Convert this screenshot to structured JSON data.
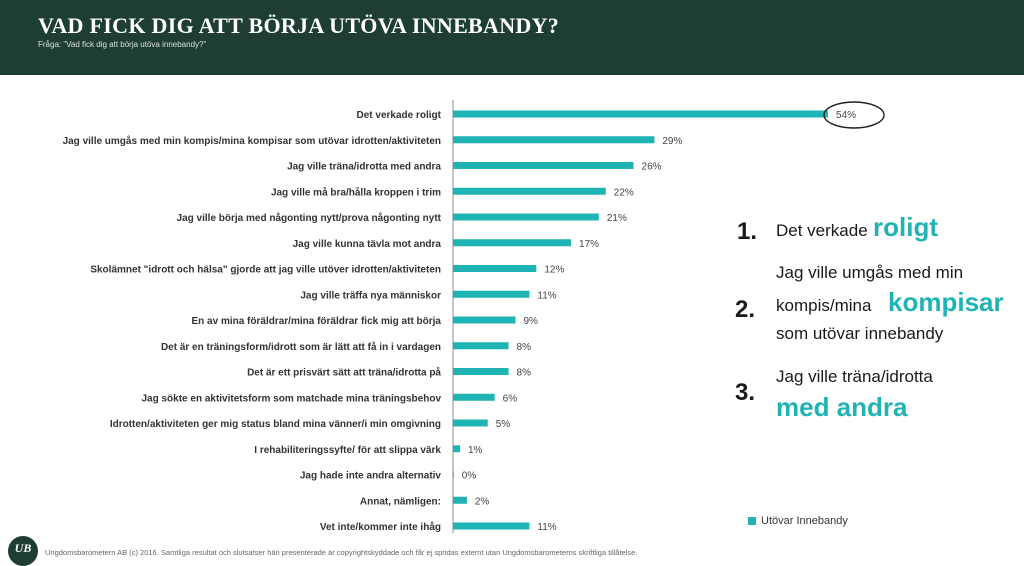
{
  "header": {
    "title": "VAD FICK DIG ATT BÖRJA UTÖVA INNEBANDY?",
    "subtitle": "Fråga: \"Vad fick dig att börja utöva innebandy?\""
  },
  "chart_data": {
    "type": "bar",
    "orientation": "horizontal",
    "categories": [
      "Det verkade roligt",
      "Jag ville umgås med min kompis/mina kompisar som utövar idrotten/aktiviteten",
      "Jag ville träna/idrotta med andra",
      "Jag ville må bra/hålla kroppen i trim",
      "Jag ville börja med någonting nytt/prova någonting nytt",
      "Jag ville kunna tävla mot andra",
      "Skolämnet \"idrott och hälsa\" gjorde att jag ville utöver idrotten/aktiviteten",
      "Jag ville träffa nya människor",
      "En av mina föräldrar/mina föräldrar fick mig att börja",
      "Det är en träningsform/idrott som är lätt att få in i vardagen",
      "Det är ett prisvärt sätt att träna/idrotta på",
      "Jag sökte en aktivitetsform som matchade mina träningsbehov",
      "Idrotten/aktiviteten ger mig status bland mina vänner/i min omgivning",
      "I rehabiliteringssyfte/ för att slippa värk",
      "Jag hade inte andra alternativ",
      "Annat, nämligen:",
      "Vet inte/kommer inte ihåg"
    ],
    "values": [
      54,
      29,
      26,
      22,
      21,
      17,
      12,
      11,
      9,
      8,
      8,
      6,
      5,
      1,
      0,
      2,
      11
    ],
    "value_labels": [
      "54%",
      "29%",
      "26%",
      "22%",
      "21%",
      "17%",
      "12%",
      "11%",
      "9%",
      "8%",
      "8%",
      "6%",
      "5%",
      "1%",
      "0%",
      "2%",
      "11%"
    ],
    "series": [
      {
        "name": "Utövar Innebandy",
        "color": "#1fb3b3"
      }
    ],
    "highlighted_category": "Det verkade roligt",
    "xlim": [
      0,
      60
    ],
    "legend_position": "bottom-right",
    "grid": false
  },
  "top3": [
    {
      "num": "1.",
      "pre": "Det verkade",
      "highlight": "roligt",
      "post": ""
    },
    {
      "num": "2.",
      "line1": "Jag ville umgås med min",
      "pre": "kompis/mina",
      "highlight": "kompisar",
      "post": "som utövar innebandy"
    },
    {
      "num": "3.",
      "line1": "Jag ville träna/idrotta",
      "highlight": "med andra"
    }
  ],
  "logo_text": "UB",
  "footer": "Ungdomsbarometern AB (c) 2016. Samtliga resultat och slutsatser häri presenterade är copyrightskyddade och får ej spridas externt utan Ungdomsbarometerns skriftliga tillåtelse."
}
